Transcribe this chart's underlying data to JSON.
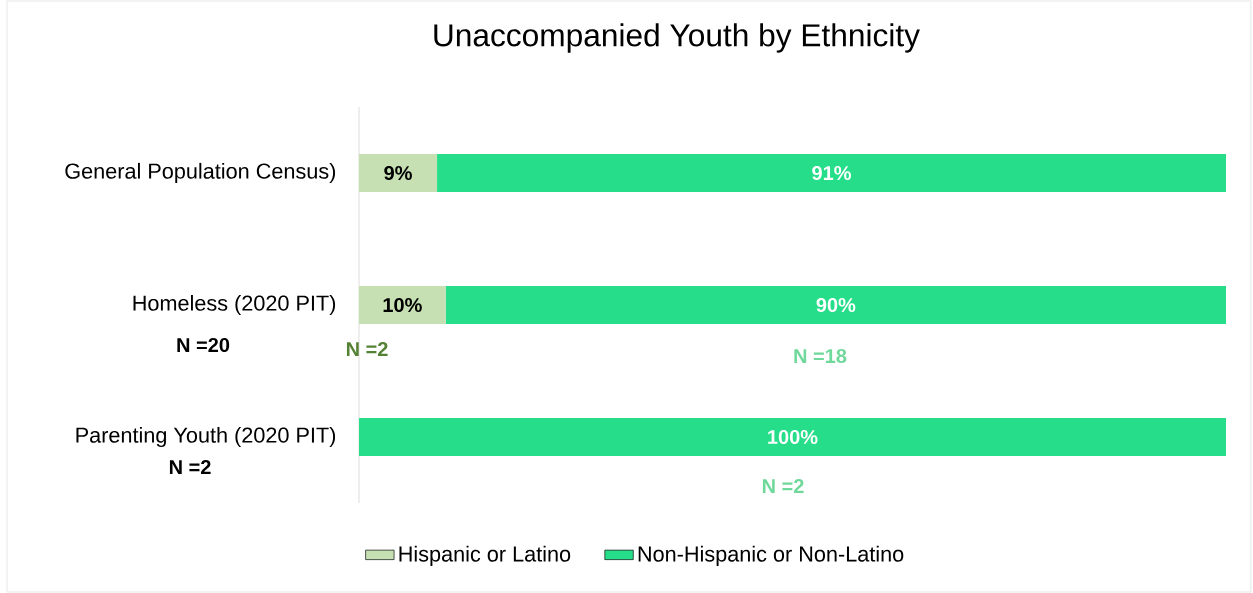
{
  "chart_data": {
    "type": "bar",
    "orientation": "horizontal",
    "stacked": true,
    "title": "Unaccompanied Youth by Ethnicity",
    "categories": [
      "General Population Census)",
      "Homeless (2020 PIT)",
      "Parenting Youth (2020 PIT)"
    ],
    "series": [
      {
        "name": "Hispanic or Latino",
        "color": "#c6e0b4",
        "values": [
          9,
          10,
          0
        ],
        "value_labels": [
          "9%",
          "10%",
          null
        ]
      },
      {
        "name": "Non-Hispanic or Non-Latino",
        "color": "#26de8a",
        "values": [
          91,
          90,
          100
        ],
        "value_labels": [
          "91%",
          "90%",
          "100%"
        ]
      }
    ],
    "legend": "bottom",
    "annotations": [
      "N =20",
      "N =2",
      "N =2",
      "N =18",
      "N =2"
    ]
  }
}
